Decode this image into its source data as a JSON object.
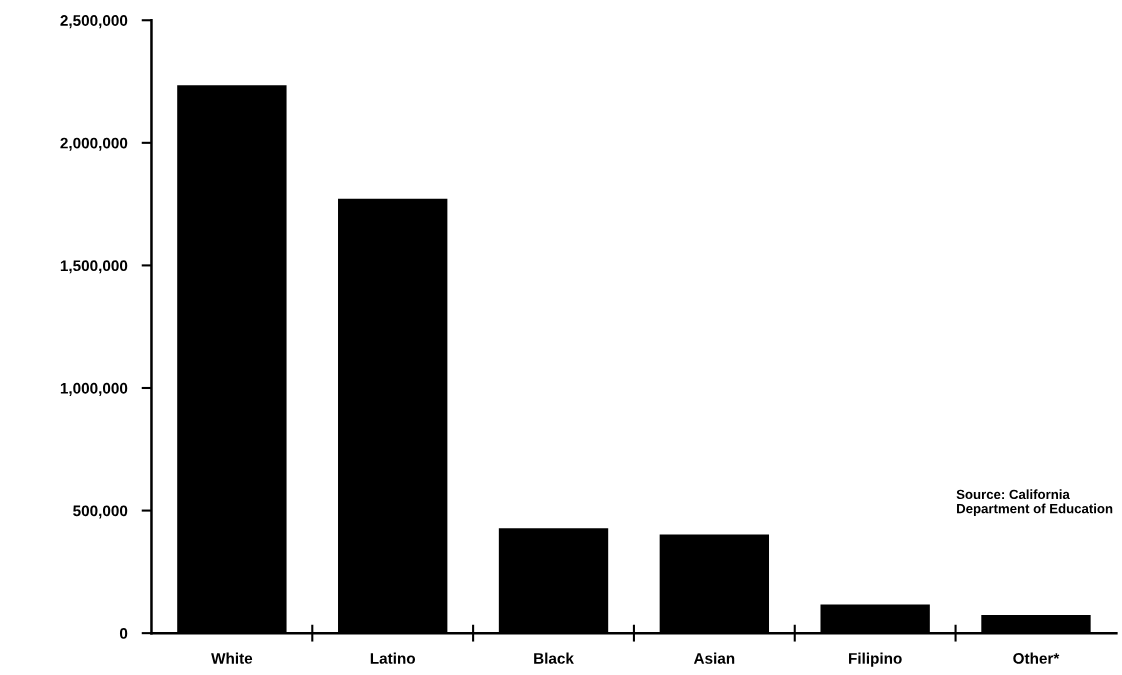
{
  "chart_data": {
    "type": "bar",
    "categories": [
      "White",
      "Latino",
      "Black",
      "Asian",
      "Filipino",
      "Other*"
    ],
    "values": [
      2235000,
      1772000,
      428000,
      402000,
      117000,
      74000
    ],
    "color": "#000000",
    "ylim": [
      0,
      2500000
    ],
    "yticks": [
      {
        "value": 0,
        "label": "0"
      },
      {
        "value": 500000,
        "label": "500,000"
      },
      {
        "value": 1000000,
        "label": "1,000,000"
      },
      {
        "value": 1500000,
        "label": "1,500,000"
      },
      {
        "value": 2000000,
        "label": "2,000,000"
      },
      {
        "value": 2500000,
        "label": "2,500,000"
      }
    ],
    "grid": false,
    "annotations": [
      "Source: California\nDepartment of Education"
    ]
  }
}
